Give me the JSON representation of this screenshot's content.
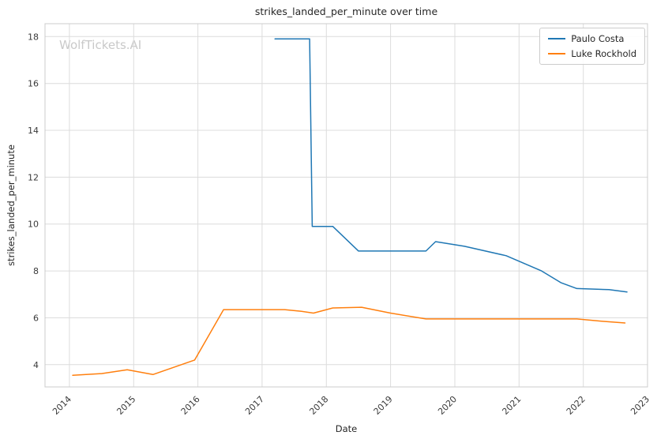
{
  "watermark": "WolfTickets.AI",
  "chart_data": {
    "type": "line",
    "title": "strikes_landed_per_minute over time",
    "xlabel": "Date",
    "ylabel": "strikes_landed_per_minute",
    "xlim": [
      2013.62,
      2023.0
    ],
    "ylim": [
      3.05,
      18.55
    ],
    "x_ticks": [
      2014,
      2015,
      2016,
      2017,
      2018,
      2019,
      2020,
      2021,
      2022,
      2023
    ],
    "y_ticks": [
      4,
      6,
      8,
      10,
      12,
      14,
      16,
      18
    ],
    "grid": true,
    "grid_color": "#dcdcdc",
    "border_color": "#cccccc",
    "legend_position": "top-right",
    "series": [
      {
        "name": "Paulo Costa",
        "color": "#1f77b4",
        "points": [
          [
            2017.2,
            17.9
          ],
          [
            2017.74,
            17.9
          ],
          [
            2017.78,
            9.9
          ],
          [
            2018.1,
            9.9
          ],
          [
            2018.5,
            8.85
          ],
          [
            2019.55,
            8.85
          ],
          [
            2019.7,
            9.25
          ],
          [
            2020.15,
            9.05
          ],
          [
            2020.8,
            8.65
          ],
          [
            2021.35,
            8.0
          ],
          [
            2021.65,
            7.5
          ],
          [
            2021.9,
            7.25
          ],
          [
            2022.4,
            7.2
          ],
          [
            2022.68,
            7.1
          ]
        ]
      },
      {
        "name": "Luke Rockhold",
        "color": "#ff7f0e",
        "points": [
          [
            2014.05,
            3.55
          ],
          [
            2014.5,
            3.62
          ],
          [
            2014.9,
            3.78
          ],
          [
            2015.3,
            3.58
          ],
          [
            2015.95,
            4.2
          ],
          [
            2016.4,
            6.35
          ],
          [
            2017.35,
            6.35
          ],
          [
            2017.6,
            6.28
          ],
          [
            2017.8,
            6.2
          ],
          [
            2018.1,
            6.42
          ],
          [
            2018.55,
            6.45
          ],
          [
            2019.0,
            6.2
          ],
          [
            2019.55,
            5.95
          ],
          [
            2020.5,
            5.95
          ],
          [
            2021.55,
            5.95
          ],
          [
            2021.9,
            5.95
          ],
          [
            2022.3,
            5.85
          ],
          [
            2022.65,
            5.78
          ]
        ]
      }
    ]
  }
}
